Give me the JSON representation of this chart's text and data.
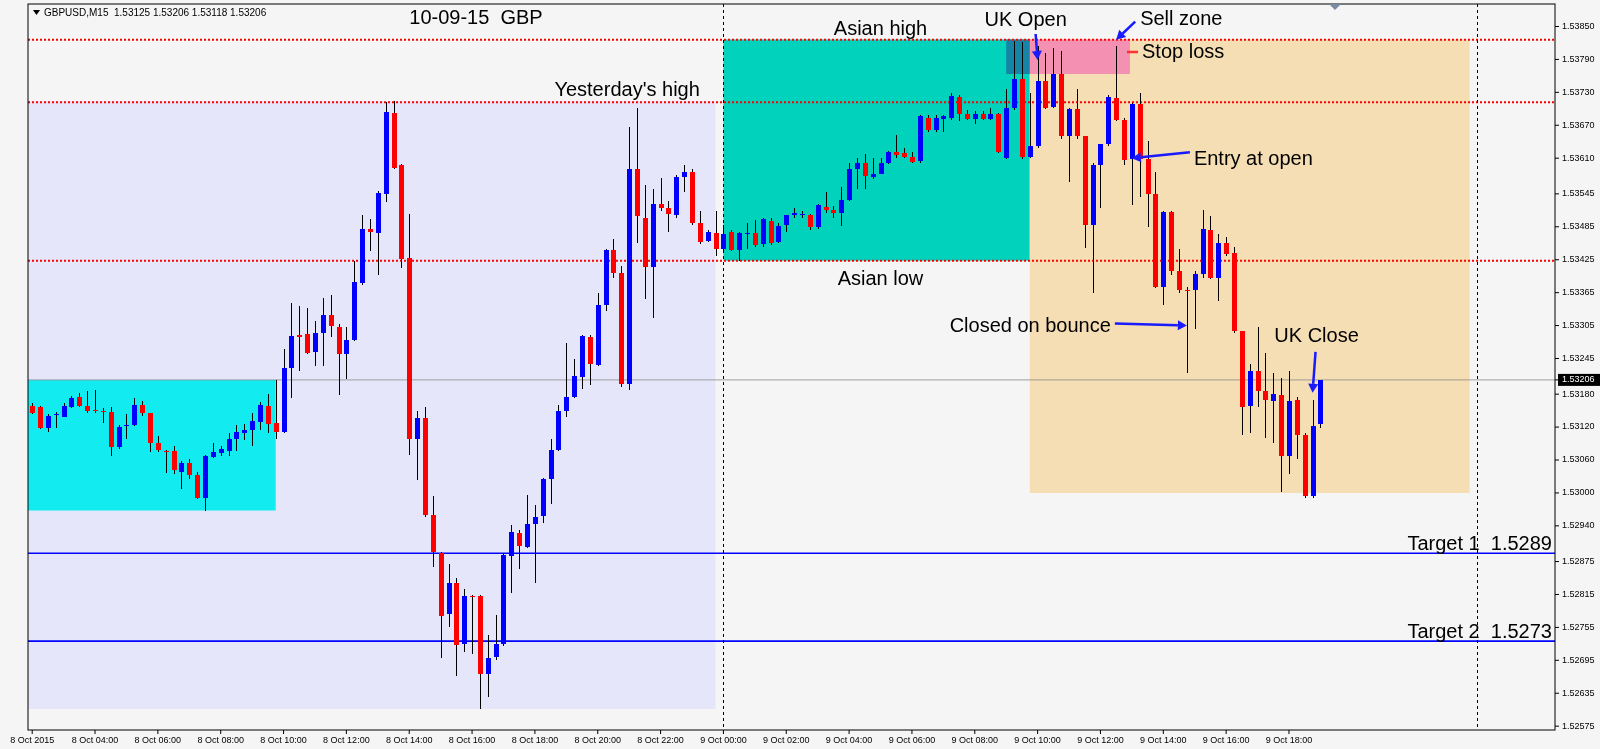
{
  "chart_data": {
    "type": "candlestick",
    "title": "10-09-15  GBP",
    "subtitle": "GBPUSD,M15  1.53125 1.53206 1.53118 1.53206",
    "x": [
      "2015-10-08T02:00",
      "2015-10-08T02:15",
      "2015-10-08T02:30",
      "2015-10-08T02:45",
      "2015-10-08T03:00",
      "2015-10-08T03:15",
      "2015-10-08T03:30",
      "2015-10-08T03:45",
      "2015-10-08T04:00",
      "2015-10-08T04:15",
      "2015-10-08T04:30",
      "2015-10-08T04:45",
      "2015-10-08T05:00",
      "2015-10-08T05:15",
      "2015-10-08T05:30",
      "2015-10-08T05:45",
      "2015-10-08T06:00",
      "2015-10-08T06:15",
      "2015-10-08T06:30",
      "2015-10-08T06:45",
      "2015-10-08T07:00",
      "2015-10-08T07:15",
      "2015-10-08T07:30",
      "2015-10-08T07:45",
      "2015-10-08T08:00",
      "2015-10-08T08:15",
      "2015-10-08T08:30",
      "2015-10-08T08:45",
      "2015-10-08T09:00",
      "2015-10-08T09:15",
      "2015-10-08T09:30",
      "2015-10-08T09:45",
      "2015-10-08T10:00",
      "2015-10-08T10:15",
      "2015-10-08T10:30",
      "2015-10-08T10:45",
      "2015-10-08T11:00",
      "2015-10-08T11:15",
      "2015-10-08T11:30",
      "2015-10-08T11:45",
      "2015-10-08T12:00",
      "2015-10-08T12:15",
      "2015-10-08T12:30",
      "2015-10-08T12:45",
      "2015-10-08T13:00",
      "2015-10-08T13:15",
      "2015-10-08T13:30",
      "2015-10-08T13:45",
      "2015-10-08T14:00",
      "2015-10-08T14:15",
      "2015-10-08T14:30",
      "2015-10-08T14:45",
      "2015-10-08T15:00",
      "2015-10-08T15:15",
      "2015-10-08T15:30",
      "2015-10-08T15:45",
      "2015-10-08T16:00",
      "2015-10-08T16:15",
      "2015-10-08T16:30",
      "2015-10-08T16:45",
      "2015-10-08T17:00",
      "2015-10-08T17:15",
      "2015-10-08T17:30",
      "2015-10-08T17:45",
      "2015-10-08T18:00",
      "2015-10-08T18:15",
      "2015-10-08T18:30",
      "2015-10-08T18:45",
      "2015-10-08T19:00",
      "2015-10-08T19:15",
      "2015-10-08T19:30",
      "2015-10-08T19:45",
      "2015-10-08T20:00",
      "2015-10-08T20:15",
      "2015-10-08T20:30",
      "2015-10-08T20:45",
      "2015-10-08T21:00",
      "2015-10-08T21:15",
      "2015-10-08T21:30",
      "2015-10-08T21:45",
      "2015-10-08T22:00",
      "2015-10-08T22:15",
      "2015-10-08T22:30",
      "2015-10-08T22:45",
      "2015-10-08T23:00",
      "2015-10-08T23:15",
      "2015-10-08T23:30",
      "2015-10-08T23:45",
      "2015-10-09T00:00",
      "2015-10-09T00:15",
      "2015-10-09T00:30",
      "2015-10-09T00:45",
      "2015-10-09T01:00",
      "2015-10-09T01:15",
      "2015-10-09T01:30",
      "2015-10-09T01:45",
      "2015-10-09T02:00",
      "2015-10-09T02:15",
      "2015-10-09T02:30",
      "2015-10-09T02:45",
      "2015-10-09T03:00",
      "2015-10-09T03:15",
      "2015-10-09T03:30",
      "2015-10-09T03:45",
      "2015-10-09T04:00",
      "2015-10-09T04:15",
      "2015-10-09T04:30",
      "2015-10-09T04:45",
      "2015-10-09T05:00",
      "2015-10-09T05:15",
      "2015-10-09T05:30",
      "2015-10-09T05:45",
      "2015-10-09T06:00",
      "2015-10-09T06:15",
      "2015-10-09T06:30",
      "2015-10-09T06:45",
      "2015-10-09T07:00",
      "2015-10-09T07:15",
      "2015-10-09T07:30",
      "2015-10-09T07:45",
      "2015-10-09T08:00",
      "2015-10-09T08:15",
      "2015-10-09T08:30",
      "2015-10-09T08:45",
      "2015-10-09T09:00",
      "2015-10-09T09:15",
      "2015-10-09T09:30",
      "2015-10-09T09:45",
      "2015-10-09T10:00",
      "2015-10-09T10:15",
      "2015-10-09T10:30",
      "2015-10-09T10:45",
      "2015-10-09T11:00",
      "2015-10-09T11:15",
      "2015-10-09T11:30",
      "2015-10-09T11:45",
      "2015-10-09T12:00",
      "2015-10-09T12:15",
      "2015-10-09T12:30",
      "2015-10-09T12:45",
      "2015-10-09T13:00",
      "2015-10-09T13:15",
      "2015-10-09T13:30",
      "2015-10-09T13:45",
      "2015-10-09T14:00",
      "2015-10-09T14:15",
      "2015-10-09T14:30",
      "2015-10-09T14:45",
      "2015-10-09T15:00",
      "2015-10-09T15:15",
      "2015-10-09T15:30",
      "2015-10-09T15:45",
      "2015-10-09T16:00",
      "2015-10-09T16:15",
      "2015-10-09T16:30",
      "2015-10-09T16:45",
      "2015-10-09T17:00",
      "2015-10-09T17:15",
      "2015-10-09T17:30",
      "2015-10-09T17:45",
      "2015-10-09T18:00",
      "2015-10-09T18:15",
      "2015-10-09T18:30",
      "2015-10-09T18:45",
      "2015-10-09T19:00"
    ],
    "ohlc": [
      [
        1.53159,
        1.53163,
        1.53144,
        1.53146
      ],
      [
        1.53157,
        1.53159,
        1.53116,
        1.53118
      ],
      [
        1.53118,
        1.53143,
        1.53111,
        1.53141
      ],
      [
        1.53143,
        1.53148,
        1.53119,
        1.53144
      ],
      [
        1.53139,
        1.53163,
        1.53138,
        1.53159
      ],
      [
        1.53157,
        1.53176,
        1.53155,
        1.53173
      ],
      [
        1.53174,
        1.53183,
        1.53157,
        1.53159
      ],
      [
        1.53159,
        1.53185,
        1.53146,
        1.5315
      ],
      [
        1.53151,
        1.53188,
        1.53146,
        1.5315
      ],
      [
        1.5315,
        1.53155,
        1.53127,
        1.53149
      ],
      [
        1.53148,
        1.53157,
        1.53067,
        1.53084
      ],
      [
        1.53083,
        1.53124,
        1.5308,
        1.5312
      ],
      [
        1.53122,
        1.53143,
        1.53098,
        1.53123
      ],
      [
        1.53124,
        1.53173,
        1.53122,
        1.5316
      ],
      [
        1.53161,
        1.53167,
        1.53141,
        1.53145
      ],
      [
        1.53145,
        1.53146,
        1.53074,
        1.53091
      ],
      [
        1.53091,
        1.53103,
        1.53074,
        1.53078
      ],
      [
        1.53077,
        1.53078,
        1.53037,
        1.53076
      ],
      [
        1.53077,
        1.53085,
        1.53035,
        1.53042
      ],
      [
        1.53039,
        1.53059,
        1.53007,
        1.53055
      ],
      [
        1.53055,
        1.53061,
        1.53026,
        1.53032
      ],
      [
        1.53032,
        1.53039,
        1.52989,
        1.52991
      ],
      [
        1.52991,
        1.5307,
        1.52967,
        1.53067
      ],
      [
        1.53065,
        1.53091,
        1.53063,
        1.53074
      ],
      [
        1.53072,
        1.53085,
        1.53068,
        1.5308
      ],
      [
        1.53077,
        1.53109,
        1.53068,
        1.53098
      ],
      [
        1.53098,
        1.53124,
        1.53077,
        1.53111
      ],
      [
        1.53109,
        1.53126,
        1.53096,
        1.53115
      ],
      [
        1.53115,
        1.53146,
        1.53085,
        1.53131
      ],
      [
        1.53129,
        1.53166,
        1.53115,
        1.5316
      ],
      [
        1.53159,
        1.53181,
        1.53109,
        1.53126
      ],
      [
        1.53128,
        1.53205,
        1.53098,
        1.53111
      ],
      [
        1.53111,
        1.53263,
        1.53109,
        1.53227
      ],
      [
        1.53227,
        1.53346,
        1.53173,
        1.53286
      ],
      [
        1.53288,
        1.5334,
        1.53222,
        1.53285
      ],
      [
        1.5329,
        1.53337,
        1.53253,
        1.53255
      ],
      [
        1.53257,
        1.53314,
        1.53231,
        1.53292
      ],
      [
        1.53292,
        1.53356,
        1.53231,
        1.53324
      ],
      [
        1.53324,
        1.53361,
        1.53285,
        1.53305
      ],
      [
        1.53303,
        1.53307,
        1.53179,
        1.53253
      ],
      [
        1.53253,
        1.53302,
        1.53207,
        1.53279
      ],
      [
        1.53279,
        1.53422,
        1.53277,
        1.53385
      ],
      [
        1.53382,
        1.53506,
        1.53379,
        1.53481
      ],
      [
        1.53481,
        1.53499,
        1.5344,
        1.53476
      ],
      [
        1.53473,
        1.53551,
        1.53397,
        1.53547
      ],
      [
        1.53545,
        1.53712,
        1.5353,
        1.53695
      ],
      [
        1.53693,
        1.53715,
        1.53591,
        1.53593
      ],
      [
        1.53597,
        1.53599,
        1.5341,
        1.53427
      ],
      [
        1.53429,
        1.53508,
        1.5307,
        1.53098
      ],
      [
        1.53098,
        1.5315,
        1.53023,
        1.53137
      ],
      [
        1.53137,
        1.53157,
        1.52956,
        1.52959
      ],
      [
        1.52959,
        1.52995,
        1.52865,
        1.52893
      ],
      [
        1.52891,
        1.52893,
        1.52699,
        1.52776
      ],
      [
        1.52779,
        1.52871,
        1.52756,
        1.52836
      ],
      [
        1.52836,
        1.52845,
        1.52667,
        1.52722
      ],
      [
        1.52725,
        1.52825,
        1.5271,
        1.52812
      ],
      [
        1.52812,
        1.52814,
        1.52706,
        1.52811
      ],
      [
        1.52812,
        1.52814,
        1.52607,
        1.5267
      ],
      [
        1.5267,
        1.52741,
        1.52629,
        1.52699
      ],
      [
        1.52701,
        1.52778,
        1.52695,
        1.52725
      ],
      [
        1.52725,
        1.52891,
        1.52721,
        1.52887
      ],
      [
        1.52885,
        1.52941,
        1.52817,
        1.52928
      ],
      [
        1.52927,
        1.52932,
        1.52862,
        1.52904
      ],
      [
        1.52902,
        1.52997,
        1.529,
        1.52943
      ],
      [
        1.52943,
        1.52978,
        1.52836,
        1.52956
      ],
      [
        1.52958,
        1.53028,
        1.52945,
        1.53026
      ],
      [
        1.53026,
        1.53098,
        1.5298,
        1.53078
      ],
      [
        1.53078,
        1.53161,
        1.53077,
        1.5315
      ],
      [
        1.5315,
        1.53273,
        1.53139,
        1.53174
      ],
      [
        1.53174,
        1.53244,
        1.53173,
        1.53214
      ],
      [
        1.53212,
        1.53288,
        1.5319,
        1.53286
      ],
      [
        1.53285,
        1.53288,
        1.53196,
        1.53235
      ],
      [
        1.53234,
        1.53364,
        1.53231,
        1.53342
      ],
      [
        1.53342,
        1.53445,
        1.53331,
        1.53442
      ],
      [
        1.53442,
        1.53462,
        1.53392,
        1.53401
      ],
      [
        1.53401,
        1.53414,
        1.53193,
        1.53198
      ],
      [
        1.53198,
        1.53667,
        1.53187,
        1.53591
      ],
      [
        1.53591,
        1.53702,
        1.53456,
        1.53504
      ],
      [
        1.53501,
        1.53562,
        1.53353,
        1.53412
      ],
      [
        1.53412,
        1.53554,
        1.53318,
        1.53527
      ],
      [
        1.53527,
        1.53574,
        1.53514,
        1.53519
      ],
      [
        1.5352,
        1.53532,
        1.53475,
        1.53508
      ],
      [
        1.53506,
        1.5358,
        1.53501,
        1.53575
      ],
      [
        1.53575,
        1.53597,
        1.53548,
        1.53584
      ],
      [
        1.53584,
        1.53591,
        1.53488,
        1.53492
      ],
      [
        1.53492,
        1.53514,
        1.53453,
        1.53458
      ],
      [
        1.5346,
        1.53479,
        1.53458,
        1.53475
      ],
      [
        1.53473,
        1.53514,
        1.53431,
        1.53445
      ],
      [
        1.53445,
        1.53488,
        1.53442,
        1.53472
      ],
      [
        1.53475,
        1.53479,
        1.53441,
        1.53443
      ],
      [
        1.53443,
        1.53475,
        1.53422,
        1.53473
      ],
      [
        1.53473,
        1.53492,
        1.53445,
        1.53474
      ],
      [
        1.53473,
        1.53497,
        1.53449,
        1.53451
      ],
      [
        1.53453,
        1.53501,
        1.53449,
        1.53499
      ],
      [
        1.53495,
        1.53501,
        1.53451,
        1.53456
      ],
      [
        1.53458,
        1.53492,
        1.53455,
        1.53486
      ],
      [
        1.53488,
        1.53507,
        1.53475,
        1.53506
      ],
      [
        1.53506,
        1.53519,
        1.53501,
        1.5351
      ],
      [
        1.53508,
        1.53513,
        1.53501,
        1.53509
      ],
      [
        1.53506,
        1.53509,
        1.53479,
        1.53484
      ],
      [
        1.53484,
        1.53527,
        1.53481,
        1.53525
      ],
      [
        1.53521,
        1.53549,
        1.5351,
        1.53516
      ],
      [
        1.53516,
        1.53523,
        1.53501,
        1.5351
      ],
      [
        1.5351,
        1.53558,
        1.53486,
        1.53534
      ],
      [
        1.53534,
        1.53602,
        1.53532,
        1.53591
      ],
      [
        1.53591,
        1.5361,
        1.53554,
        1.53602
      ],
      [
        1.53602,
        1.53617,
        1.53554,
        1.53577
      ],
      [
        1.53575,
        1.5361,
        1.53573,
        1.53582
      ],
      [
        1.53582,
        1.5361,
        1.53581,
        1.53602
      ],
      [
        1.53602,
        1.53623,
        1.536,
        1.53621
      ],
      [
        1.53621,
        1.53652,
        1.5361,
        1.53615
      ],
      [
        1.53619,
        1.53628,
        1.5361,
        1.53612
      ],
      [
        1.53612,
        1.53621,
        1.53602,
        1.53603
      ],
      [
        1.53604,
        1.53689,
        1.53602,
        1.53686
      ],
      [
        1.53684,
        1.53689,
        1.53658,
        1.53661
      ],
      [
        1.53661,
        1.53689,
        1.53658,
        1.53684
      ],
      [
        1.53682,
        1.53689,
        1.53658,
        1.53686
      ],
      [
        1.53684,
        1.53728,
        1.5368,
        1.53724
      ],
      [
        1.53722,
        1.53725,
        1.53678,
        1.5369
      ],
      [
        1.53691,
        1.53697,
        1.5368,
        1.53682
      ],
      [
        1.53682,
        1.53696,
        1.53673,
        1.53691
      ],
      [
        1.53691,
        1.53696,
        1.5368,
        1.53682
      ],
      [
        1.53682,
        1.53702,
        1.5368,
        1.53691
      ],
      [
        1.5369,
        1.53692,
        1.53619,
        1.53621
      ],
      [
        1.5361,
        1.53737,
        1.53608,
        1.53702
      ],
      [
        1.53702,
        1.53824,
        1.53697,
        1.53754
      ],
      [
        1.53754,
        1.53821,
        1.53608,
        1.53612
      ],
      [
        1.53612,
        1.53728,
        1.5361,
        1.53632
      ],
      [
        1.53632,
        1.53815,
        1.53629,
        1.53751
      ],
      [
        1.53751,
        1.53802,
        1.53699,
        1.53702
      ],
      [
        1.53704,
        1.53811,
        1.53702,
        1.53763
      ],
      [
        1.53763,
        1.53806,
        1.53645,
        1.5365
      ],
      [
        1.53651,
        1.53702,
        1.53567,
        1.53699
      ],
      [
        1.53699,
        1.53737,
        1.53645,
        1.5365
      ],
      [
        1.5365,
        1.53651,
        1.53446,
        1.53488
      ],
      [
        1.53488,
        1.53602,
        1.53364,
        1.53597
      ],
      [
        1.53597,
        1.53636,
        1.53519,
        1.53635
      ],
      [
        1.53635,
        1.53725,
        1.53632,
        1.53722
      ],
      [
        1.53719,
        1.53815,
        1.53678,
        1.5368
      ],
      [
        1.5368,
        1.53684,
        1.53597,
        1.53606
      ],
      [
        1.53608,
        1.5371,
        1.53525,
        1.53708
      ],
      [
        1.53708,
        1.53728,
        1.5354,
        1.53608
      ],
      [
        1.53608,
        1.53641,
        1.53484,
        1.53545
      ],
      [
        1.53545,
        1.53584,
        1.53373,
        1.53375
      ],
      [
        1.53375,
        1.53514,
        1.53342,
        1.53512
      ],
      [
        1.53512,
        1.53514,
        1.53397,
        1.53405
      ],
      [
        1.53405,
        1.53445,
        1.53364,
        1.53369
      ],
      [
        1.5337,
        1.53375,
        1.53218,
        1.53369
      ],
      [
        1.5337,
        1.53405,
        1.53298,
        1.53399
      ],
      [
        1.53399,
        1.53516,
        1.53392,
        1.53481
      ],
      [
        1.53479,
        1.53504,
        1.5339,
        1.53392
      ],
      [
        1.53392,
        1.53471,
        1.5335,
        1.53455
      ],
      [
        1.53455,
        1.53466,
        1.53431,
        1.53436
      ],
      [
        1.53438,
        1.53449,
        1.53292,
        1.53295
      ],
      [
        1.53295,
        1.53296,
        1.53105,
        1.53157
      ],
      [
        1.53159,
        1.53235,
        1.53109,
        1.53222
      ],
      [
        1.53222,
        1.53303,
        1.53157,
        1.53185
      ],
      [
        1.53185,
        1.53255,
        1.531,
        1.5317
      ],
      [
        1.53167,
        1.53218,
        1.53091,
        1.53181
      ],
      [
        1.53179,
        1.53209,
        1.53002,
        1.53067
      ],
      [
        1.53067,
        1.53222,
        1.53035,
        1.53167
      ],
      [
        1.5317,
        1.53174,
        1.53061,
        1.53105
      ],
      [
        1.53105,
        1.53109,
        1.52991,
        1.52994
      ],
      [
        1.52994,
        1.5317,
        1.52991,
        1.53122
      ],
      [
        1.53125,
        1.53206,
        1.53118,
        1.53206
      ]
    ],
    "xlim": [
      "2015-10-08T01:52",
      "2015-10-10T02:28"
    ],
    "ylim": [
      1.52568,
      1.53891
    ],
    "xticks": [
      {
        "value": "2015-10-08T02:00",
        "label": "8 Oct 2015"
      },
      {
        "value": "2015-10-08T04:00",
        "label": "8 Oct 04:00"
      },
      {
        "value": "2015-10-08T06:00",
        "label": "8 Oct 06:00"
      },
      {
        "value": "2015-10-08T08:00",
        "label": "8 Oct 08:00"
      },
      {
        "value": "2015-10-08T10:00",
        "label": "8 Oct 10:00"
      },
      {
        "value": "2015-10-08T12:00",
        "label": "8 Oct 12:00"
      },
      {
        "value": "2015-10-08T14:00",
        "label": "8 Oct 14:00"
      },
      {
        "value": "2015-10-08T16:00",
        "label": "8 Oct 16:00"
      },
      {
        "value": "2015-10-08T18:00",
        "label": "8 Oct 18:00"
      },
      {
        "value": "2015-10-08T20:00",
        "label": "8 Oct 20:00"
      },
      {
        "value": "2015-10-08T22:00",
        "label": "8 Oct 22:00"
      },
      {
        "value": "2015-10-09T00:00",
        "label": "9 Oct 00:00"
      },
      {
        "value": "2015-10-09T02:00",
        "label": "9 Oct 02:00"
      },
      {
        "value": "2015-10-09T04:00",
        "label": "9 Oct 04:00"
      },
      {
        "value": "2015-10-09T06:00",
        "label": "9 Oct 06:00"
      },
      {
        "value": "2015-10-09T08:00",
        "label": "9 Oct 08:00"
      },
      {
        "value": "2015-10-09T10:00",
        "label": "9 Oct 10:00"
      },
      {
        "value": "2015-10-09T12:00",
        "label": "9 Oct 12:00"
      },
      {
        "value": "2015-10-09T14:00",
        "label": "9 Oct 14:00"
      },
      {
        "value": "2015-10-09T16:00",
        "label": "9 Oct 16:00"
      },
      {
        "value": "2015-10-09T18:00",
        "label": "9 Oct 18:00"
      }
    ],
    "yticks": [
      {
        "value": 1.5385,
        "label": "1.53850"
      },
      {
        "value": 1.5379,
        "label": "1.53790"
      },
      {
        "value": 1.5373,
        "label": "1.53730"
      },
      {
        "value": 1.5367,
        "label": "1.53670"
      },
      {
        "value": 1.5361,
        "label": "1.53610"
      },
      1.53545,
      1.53485,
      1.53425,
      1.53365,
      1.53305,
      1.53245,
      {
        "value": 1.53206,
        "label": "1.53206"
      },
      {
        "value": 1.5318,
        "label": "1.53180"
      },
      {
        "value": 1.5312,
        "label": "1.53120"
      },
      {
        "value": 1.5306,
        "label": "1.53060"
      },
      {
        "value": 1.53,
        "label": "1.53000"
      },
      {
        "value": 1.5294,
        "label": "1.52940"
      },
      1.52875,
      1.52815,
      1.52755,
      1.52695,
      1.52635,
      1.52575
    ],
    "ref_lines": [
      {
        "axis": "y",
        "value": 1.53826,
        "color": "#ff0000",
        "line_style": "dotted"
      },
      {
        "axis": "y",
        "value": 1.53712,
        "color": "#ff0000",
        "line_style": "dotted"
      },
      {
        "axis": "y",
        "value": 1.53423,
        "color": "#ff0000",
        "line_style": "dotted"
      },
      {
        "axis": "y",
        "value": 1.5289,
        "label": "Target 1  1.5289",
        "color": "#0000ff",
        "line_style": "solid"
      },
      {
        "axis": "y",
        "value": 1.5273,
        "label": "Target 2  1.5273",
        "color": "#0000ff",
        "line_style": "solid"
      },
      {
        "axis": "y",
        "value": 1.53206,
        "color": "#8a8a8a",
        "line_style": "solid"
      },
      {
        "axis": "x",
        "value": "2015-10-09T00:00",
        "color": "#000000",
        "line_style": "dashed"
      },
      {
        "axis": "x",
        "value": "2015-10-10T00:00",
        "color": "#000000",
        "line_style": "dashed"
      }
    ],
    "annotations": [
      {
        "text": "Yesterday's high",
        "x": "2015-10-08T23:15",
        "y": 1.53712
      },
      {
        "text": "Asian high",
        "x": "2015-10-09T05:00",
        "y": 1.53826
      },
      {
        "text": "Asian low",
        "x": "2015-10-09T05:00",
        "y": 1.53423
      },
      {
        "text": "UK Open",
        "x": "2015-10-09T10:00",
        "y": 1.53789
      },
      {
        "text": "Sell zone",
        "x": "2015-10-09T12:30",
        "y": 1.53826
      },
      "Stop loss",
      {
        "text": "Entry at open",
        "x": "2015-10-09T13:00",
        "y": 1.5361
      },
      {
        "text": "Closed on bounce",
        "x": "2015-10-09T14:45",
        "y": 1.53305
      },
      {
        "text": "UK Close",
        "x": "2015-10-09T18:45",
        "y": 1.53166
      }
    ]
  }
}
